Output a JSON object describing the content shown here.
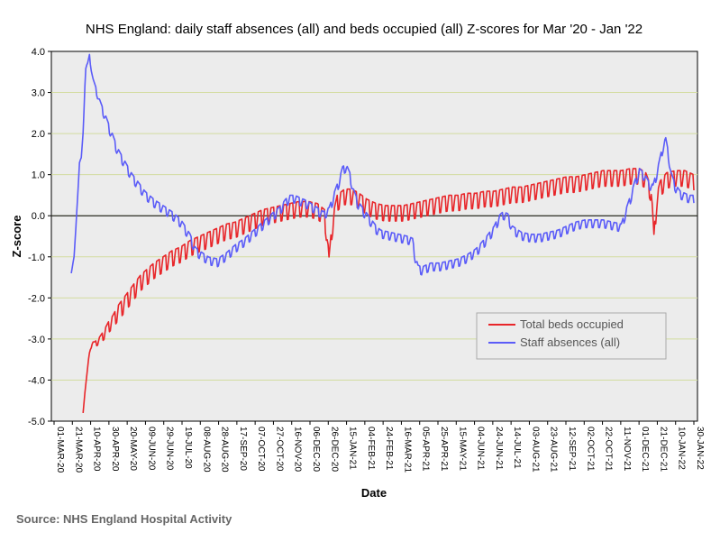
{
  "chart_data": {
    "type": "line",
    "title": "NHS England: daily staff absences (all) and beds occupied (all) Z-scores for Mar '20 - Jan '22",
    "xlabel": "Date",
    "ylabel": "Z-score",
    "ylim": [
      -5,
      4
    ],
    "yticks": [
      "-5.0",
      "-4.0",
      "-3.0",
      "-2.0",
      "-1.0",
      "0.0",
      "1.0",
      "2.0",
      "3.0",
      "4.0"
    ],
    "x_tick_labels": [
      "01-MAR-20",
      "21-MAR-20",
      "10-APR-20",
      "30-APR-20",
      "20-MAY-20",
      "09-JUN-20",
      "29-JUN-20",
      "19-JUL-20",
      "08-AUG-20",
      "28-AUG-20",
      "17-SEP-20",
      "07-OCT-20",
      "27-OCT-20",
      "16-NOV-20",
      "06-DEC-20",
      "26-DEC-20",
      "15-JAN-21",
      "04-FEB-21",
      "24-FEB-21",
      "16-MAR-21",
      "05-APR-21",
      "25-APR-21",
      "15-MAY-21",
      "04-JUN-21",
      "24-JUN-21",
      "14-JUL-21",
      "03-AUG-21",
      "23-AUG-21",
      "12-SEP-21",
      "02-OCT-21",
      "22-OCT-21",
      "11-NOV-21",
      "01-DEC-21",
      "21-DEC-21",
      "10-JAN-22",
      "30-JAN-22"
    ],
    "x_range_days": [
      0,
      705
    ],
    "grid": "horizontal",
    "legend_position": "lower-right",
    "series": [
      {
        "name": "Total beds occupied",
        "color": "#e8262a",
        "weekly_oscillation": 0.28,
        "points": [
          [
            32,
            -4.8
          ],
          [
            34,
            -4.3
          ],
          [
            36,
            -3.9
          ],
          [
            38,
            -3.5
          ],
          [
            40,
            -3.2
          ],
          [
            42,
            -3.1
          ],
          [
            45,
            -3.1
          ],
          [
            50,
            -3.0
          ],
          [
            55,
            -2.85
          ],
          [
            60,
            -2.65
          ],
          [
            65,
            -2.5
          ],
          [
            70,
            -2.3
          ],
          [
            75,
            -2.15
          ],
          [
            80,
            -2.0
          ],
          [
            85,
            -1.85
          ],
          [
            90,
            -1.7
          ],
          [
            95,
            -1.55
          ],
          [
            100,
            -1.45
          ],
          [
            110,
            -1.25
          ],
          [
            120,
            -1.1
          ],
          [
            130,
            -0.95
          ],
          [
            140,
            -0.85
          ],
          [
            150,
            -0.7
          ],
          [
            160,
            -0.6
          ],
          [
            170,
            -0.5
          ],
          [
            180,
            -0.4
          ],
          [
            190,
            -0.3
          ],
          [
            200,
            -0.25
          ],
          [
            210,
            -0.15
          ],
          [
            220,
            -0.05
          ],
          [
            230,
            0.05
          ],
          [
            240,
            0.1
          ],
          [
            250,
            0.15
          ],
          [
            260,
            0.2
          ],
          [
            270,
            0.25
          ],
          [
            280,
            0.25
          ],
          [
            290,
            0.2
          ],
          [
            298,
            0.05
          ],
          [
            301,
            -0.5
          ],
          [
            303,
            -1.1
          ],
          [
            306,
            -0.3
          ],
          [
            308,
            0.0
          ],
          [
            312,
            0.4
          ],
          [
            320,
            0.55
          ],
          [
            328,
            0.55
          ],
          [
            336,
            0.45
          ],
          [
            345,
            0.3
          ],
          [
            355,
            0.2
          ],
          [
            365,
            0.15
          ],
          [
            375,
            0.15
          ],
          [
            385,
            0.15
          ],
          [
            395,
            0.2
          ],
          [
            405,
            0.25
          ],
          [
            415,
            0.3
          ],
          [
            425,
            0.35
          ],
          [
            435,
            0.4
          ],
          [
            445,
            0.4
          ],
          [
            455,
            0.45
          ],
          [
            465,
            0.45
          ],
          [
            475,
            0.5
          ],
          [
            485,
            0.5
          ],
          [
            495,
            0.55
          ],
          [
            505,
            0.6
          ],
          [
            515,
            0.6
          ],
          [
            525,
            0.65
          ],
          [
            535,
            0.7
          ],
          [
            545,
            0.75
          ],
          [
            555,
            0.8
          ],
          [
            565,
            0.85
          ],
          [
            575,
            0.85
          ],
          [
            585,
            0.9
          ],
          [
            595,
            0.95
          ],
          [
            605,
            1.0
          ],
          [
            615,
            1.0
          ],
          [
            625,
            1.0
          ],
          [
            635,
            1.05
          ],
          [
            645,
            1.05
          ],
          [
            652,
            0.95
          ],
          [
            658,
            0.6
          ],
          [
            661,
            -0.55
          ],
          [
            664,
            0.4
          ],
          [
            668,
            0.75
          ],
          [
            675,
            0.95
          ],
          [
            685,
            1.0
          ],
          [
            695,
            1.0
          ],
          [
            705,
            0.9
          ]
        ]
      },
      {
        "name": "Staff absences (all)",
        "color": "#5b5cf8",
        "weekly_oscillation": 0.14,
        "points": [
          [
            19,
            -1.4
          ],
          [
            22,
            -1.0
          ],
          [
            24,
            -0.3
          ],
          [
            26,
            0.5
          ],
          [
            28,
            1.3
          ],
          [
            30,
            1.4
          ],
          [
            32,
            2.0
          ],
          [
            34,
            3.2
          ],
          [
            35,
            3.6
          ],
          [
            37,
            3.7
          ],
          [
            39,
            3.9
          ],
          [
            41,
            3.6
          ],
          [
            43,
            3.3
          ],
          [
            46,
            3.1
          ],
          [
            50,
            2.8
          ],
          [
            55,
            2.5
          ],
          [
            60,
            2.2
          ],
          [
            65,
            1.9
          ],
          [
            70,
            1.6
          ],
          [
            75,
            1.4
          ],
          [
            80,
            1.2
          ],
          [
            85,
            1.0
          ],
          [
            90,
            0.85
          ],
          [
            95,
            0.7
          ],
          [
            100,
            0.55
          ],
          [
            110,
            0.35
          ],
          [
            120,
            0.2
          ],
          [
            130,
            0.05
          ],
          [
            140,
            -0.15
          ],
          [
            150,
            -0.5
          ],
          [
            155,
            -0.8
          ],
          [
            160,
            -0.9
          ],
          [
            170,
            -1.05
          ],
          [
            180,
            -1.1
          ],
          [
            190,
            -0.95
          ],
          [
            200,
            -0.75
          ],
          [
            210,
            -0.6
          ],
          [
            220,
            -0.4
          ],
          [
            230,
            -0.2
          ],
          [
            240,
            0.0
          ],
          [
            250,
            0.2
          ],
          [
            255,
            0.35
          ],
          [
            260,
            0.45
          ],
          [
            265,
            0.45
          ],
          [
            270,
            0.4
          ],
          [
            280,
            0.3
          ],
          [
            290,
            0.15
          ],
          [
            297,
            0.05
          ],
          [
            303,
            0.15
          ],
          [
            310,
            0.6
          ],
          [
            315,
            0.9
          ],
          [
            318,
            1.15
          ],
          [
            322,
            1.2
          ],
          [
            326,
            1.0
          ],
          [
            330,
            0.6
          ],
          [
            335,
            0.3
          ],
          [
            340,
            0.15
          ],
          [
            345,
            0.0
          ],
          [
            350,
            -0.15
          ],
          [
            355,
            -0.3
          ],
          [
            360,
            -0.4
          ],
          [
            370,
            -0.45
          ],
          [
            380,
            -0.5
          ],
          [
            390,
            -0.55
          ],
          [
            395,
            -0.6
          ],
          [
            398,
            -1.0
          ],
          [
            401,
            -1.25
          ],
          [
            405,
            -1.3
          ],
          [
            415,
            -1.2
          ],
          [
            425,
            -1.2
          ],
          [
            435,
            -1.15
          ],
          [
            445,
            -1.1
          ],
          [
            455,
            -1.0
          ],
          [
            465,
            -0.85
          ],
          [
            475,
            -0.6
          ],
          [
            485,
            -0.3
          ],
          [
            490,
            -0.05
          ],
          [
            495,
            0.05
          ],
          [
            500,
            0.0
          ],
          [
            505,
            -0.3
          ],
          [
            515,
            -0.45
          ],
          [
            525,
            -0.5
          ],
          [
            535,
            -0.5
          ],
          [
            545,
            -0.45
          ],
          [
            555,
            -0.4
          ],
          [
            565,
            -0.3
          ],
          [
            575,
            -0.2
          ],
          [
            585,
            -0.15
          ],
          [
            595,
            -0.15
          ],
          [
            605,
            -0.15
          ],
          [
            615,
            -0.2
          ],
          [
            625,
            -0.25
          ],
          [
            630,
            0.1
          ],
          [
            636,
            0.5
          ],
          [
            640,
            0.8
          ],
          [
            645,
            1.1
          ],
          [
            650,
            1.0
          ],
          [
            655,
            0.8
          ],
          [
            660,
            0.7
          ],
          [
            666,
            1.2
          ],
          [
            671,
            1.7
          ],
          [
            674,
            1.85
          ],
          [
            677,
            1.5
          ],
          [
            680,
            1.0
          ],
          [
            685,
            0.7
          ],
          [
            690,
            0.55
          ],
          [
            695,
            0.5
          ],
          [
            700,
            0.45
          ],
          [
            705,
            0.45
          ]
        ]
      }
    ]
  },
  "source_text": "Source: NHS England Hospital Activity"
}
